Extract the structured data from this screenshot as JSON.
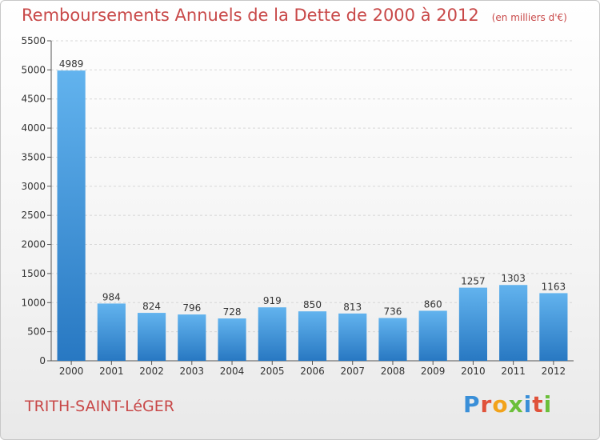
{
  "chart_data": {
    "type": "bar",
    "title": "Remboursements Annuels de la Dette de 2000 à 2012",
    "subtitle": "(en milliers d'€)",
    "categories": [
      "2000",
      "2001",
      "2002",
      "2003",
      "2004",
      "2005",
      "2006",
      "2007",
      "2008",
      "2009",
      "2010",
      "2011",
      "2012"
    ],
    "values": [
      4989,
      984,
      824,
      796,
      728,
      919,
      850,
      813,
      736,
      860,
      1257,
      1303,
      1163
    ],
    "ylim": [
      0,
      5500
    ],
    "yticks": [
      0,
      500,
      1000,
      1500,
      2000,
      2500,
      3000,
      3500,
      4000,
      4500,
      5000,
      5500
    ],
    "grid": true,
    "legend": "none",
    "colors": {
      "bar_light": "#5fb0ec",
      "bar_dark": "#2a7fc6",
      "title": "#c84848"
    }
  },
  "footer": {
    "commune": "TRITH-SAINT-LéGER",
    "logo_text": "Proxiti"
  }
}
